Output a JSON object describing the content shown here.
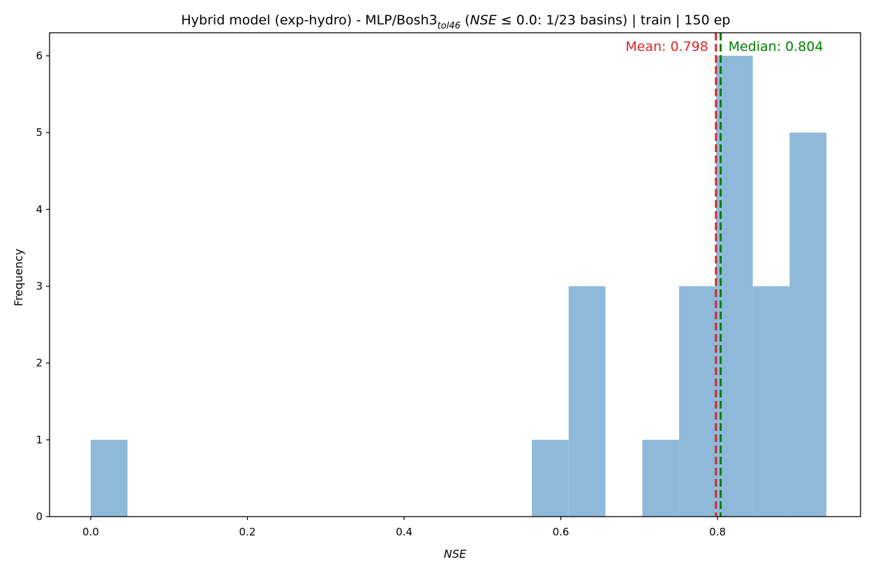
{
  "chart_data": {
    "type": "bar",
    "title": {
      "prefix": "Hybrid model (exp-hydro) - MLP/Bosh3",
      "sub": "tol46",
      "mid": " (",
      "italic": "NSE",
      "rest": " ≤ 0.0: 1/23 basins) | train | 150 ep"
    },
    "xlabel": "NSE",
    "ylabel": "Frequency",
    "xlim": [
      -0.0525,
      0.9825
    ],
    "ylim": [
      0,
      6.3
    ],
    "xticks": [
      0.0,
      0.2,
      0.4,
      0.6,
      0.8
    ],
    "xtick_labels": [
      "0.0",
      "0.2",
      "0.4",
      "0.6",
      "0.8"
    ],
    "yticks": [
      0,
      1,
      2,
      3,
      4,
      5,
      6
    ],
    "ytick_labels": [
      "0",
      "1",
      "2",
      "3",
      "4",
      "5",
      "6"
    ],
    "bins": [
      {
        "x0": 0.0,
        "x1": 0.047,
        "count": 1
      },
      {
        "x0": 0.563,
        "x1": 0.61,
        "count": 1
      },
      {
        "x0": 0.61,
        "x1": 0.657,
        "count": 3
      },
      {
        "x0": 0.704,
        "x1": 0.751,
        "count": 1
      },
      {
        "x0": 0.751,
        "x1": 0.798,
        "count": 3
      },
      {
        "x0": 0.798,
        "x1": 0.845,
        "count": 6
      },
      {
        "x0": 0.845,
        "x1": 0.892,
        "count": 3
      },
      {
        "x0": 0.892,
        "x1": 0.939,
        "count": 5
      }
    ],
    "bar_color": "#8fb9d9",
    "mean": {
      "value": 0.798,
      "label": "Mean: 0.798",
      "color": "#d62728"
    },
    "median": {
      "value": 0.804,
      "label": "Median: 0.804",
      "color": "#008000"
    },
    "grid": false
  }
}
